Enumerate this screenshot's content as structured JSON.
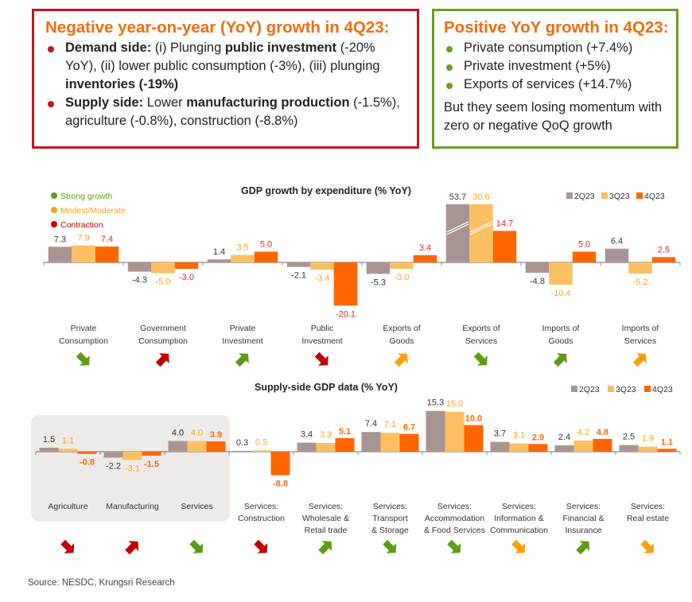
{
  "negative_box": {
    "title": "Negative year-on-year (YoY) growth in 4Q23:",
    "bullets": [
      {
        "parts": [
          {
            "text": "Demand side:",
            "bold": true
          },
          {
            "text": " (i) Plunging ",
            "bold": false
          },
          {
            "text": "public investment",
            "bold": true
          },
          {
            "text": " (-20% YoY), (ii) lower public consumption (-3%), (iii) plunging ",
            "bold": false
          },
          {
            "text": "inventories (-19%)",
            "bold": true
          }
        ]
      },
      {
        "parts": [
          {
            "text": "Supply side:",
            "bold": true
          },
          {
            "text": " Lower ",
            "bold": false
          },
          {
            "text": "manufacturing production",
            "bold": true
          },
          {
            "text": " (-1.5%), agriculture (-0.8%), construction (-8.8%)",
            "bold": false
          }
        ]
      }
    ],
    "border_color": "#c0171d"
  },
  "positive_box": {
    "title": "Positive YoY growth in 4Q23:",
    "bullets": [
      "Private consumption (+7.4%)",
      "Private investment (+5%)",
      "Exports of services (+14.7%)"
    ],
    "note": "But they seem losing momentum with zero or negative QoQ growth",
    "border_color": "#6c9e1f"
  },
  "status_legend": [
    {
      "label": "Strong growth",
      "color": "#5f9a1a"
    },
    {
      "label": "Modest/Moderate",
      "color": "#f7a21b"
    },
    {
      "label": "Contraction",
      "color": "#c00000"
    }
  ],
  "colors": {
    "2Q23": "#a89593",
    "3Q23": "#fdbf62",
    "4Q23": "#ff6600",
    "label_2Q23": "#333333",
    "label_3Q23": "#f5a623",
    "label_4Q23_demand": "#ee2222",
    "label_4Q23_supply": "#f26b0f",
    "arrow_green": "#5f9a1a",
    "arrow_orange": "#ff9e10",
    "arrow_red": "#c00000",
    "shade": "#eeeae8"
  },
  "chart_data": [
    {
      "type": "bar",
      "title": "GDP growth by expenditure (% YoY)",
      "legend": [
        "2Q23",
        "3Q23",
        "4Q23"
      ],
      "legend_position": "top-right",
      "categories": [
        "Private Consumption",
        "Government Consumption",
        "Private Investment",
        "Public Investment",
        "Exports of Goods",
        "Exports of Services",
        "Imports of Goods",
        "Imports of Services"
      ],
      "series": [
        {
          "name": "2Q23",
          "values": [
            7.3,
            -4.3,
            1.4,
            -2.1,
            -5.3,
            53.7,
            -4.8,
            6.4
          ]
        },
        {
          "name": "3Q23",
          "values": [
            7.9,
            -5.0,
            3.5,
            -3.4,
            -3.0,
            30.6,
            -10.4,
            -5.2
          ]
        },
        {
          "name": "4Q23",
          "values": [
            7.4,
            -3.0,
            5.0,
            -20.1,
            3.4,
            14.7,
            5.0,
            2.5
          ]
        }
      ],
      "value_labels": {
        "2Q23": [
          "7.3",
          "-4.3",
          "1.4",
          "-2.1",
          "-5.3",
          "53.7",
          "-4.8",
          "6.4"
        ],
        "3Q23": [
          "7.9",
          "-5.0",
          "3.5",
          "-3.4",
          "-3.0",
          "30.6",
          "-10.4",
          "-5.2"
        ],
        "4Q23": [
          "7.4",
          "-3.0",
          "5.0",
          "-20.1",
          "3.4",
          "14.7",
          "5.0",
          "2.5"
        ]
      },
      "hidden_labels": {
        "3Q23": [
          false,
          false,
          false,
          false,
          false,
          false,
          false,
          false
        ]
      },
      "broken_axis_bars": [
        "Exports of Services 2Q23",
        "Exports of Services 3Q23"
      ],
      "trend_arrows": [
        "green-down",
        "red-up",
        "green-up",
        "red-down",
        "orange-up",
        "green-down",
        "green-up",
        "orange-up"
      ],
      "xlabel": "",
      "ylabel": ""
    },
    {
      "type": "bar",
      "title": "Supply-side GDP data (% YoY)",
      "legend": [
        "2Q23",
        "3Q23",
        "4Q23"
      ],
      "legend_position": "top-right",
      "categories": [
        "Agriculture",
        "Manufacturing",
        "Services",
        "Services: Construction",
        "Services: Wholesale & Retail trade",
        "Services: Transport & Storage",
        "Services: Accommodation & Food Services",
        "Services: Information & Communication",
        "Services: Financial & Insurance",
        "Services: Real estate"
      ],
      "series": [
        {
          "name": "2Q23",
          "values": [
            1.5,
            -2.2,
            4.0,
            0.3,
            3.4,
            7.4,
            15.3,
            3.7,
            2.4,
            2.5
          ]
        },
        {
          "name": "3Q23",
          "values": [
            1.1,
            -3.1,
            4.0,
            0.5,
            3.3,
            7.1,
            15.0,
            3.1,
            4.2,
            1.9
          ]
        },
        {
          "name": "4Q23",
          "values": [
            -0.8,
            -1.5,
            3.9,
            -8.8,
            5.1,
            6.7,
            10.0,
            2.9,
            4.8,
            1.1
          ]
        }
      ],
      "value_labels": {
        "2Q23": [
          "1.5",
          "-2.2",
          "4.0",
          "0.3",
          "3.4",
          "7.4",
          "15.3",
          "3.7",
          "2.4",
          "2.5"
        ],
        "3Q23": [
          "1.1",
          "-3.1",
          "4.0",
          "0.5",
          "3.3",
          "7.1",
          "15.0",
          "3.1",
          "4.2",
          "1.9"
        ],
        "4Q23": [
          "-0.8",
          "-1.5",
          "3.9",
          "-8.8",
          "5.1",
          "6.7",
          "10.0",
          "2.9",
          "4.8",
          "1.1"
        ]
      },
      "highlighted_group": [
        "Agriculture",
        "Manufacturing",
        "Services"
      ],
      "trend_arrows": [
        "red-down",
        "red-up",
        "green-down",
        "red-down",
        "green-up",
        "green-down",
        "green-down",
        "orange-down",
        "green-up",
        "orange-down"
      ],
      "xlabel": "",
      "ylabel": ""
    }
  ],
  "source": "Source: NESDC, Krungsri Research"
}
